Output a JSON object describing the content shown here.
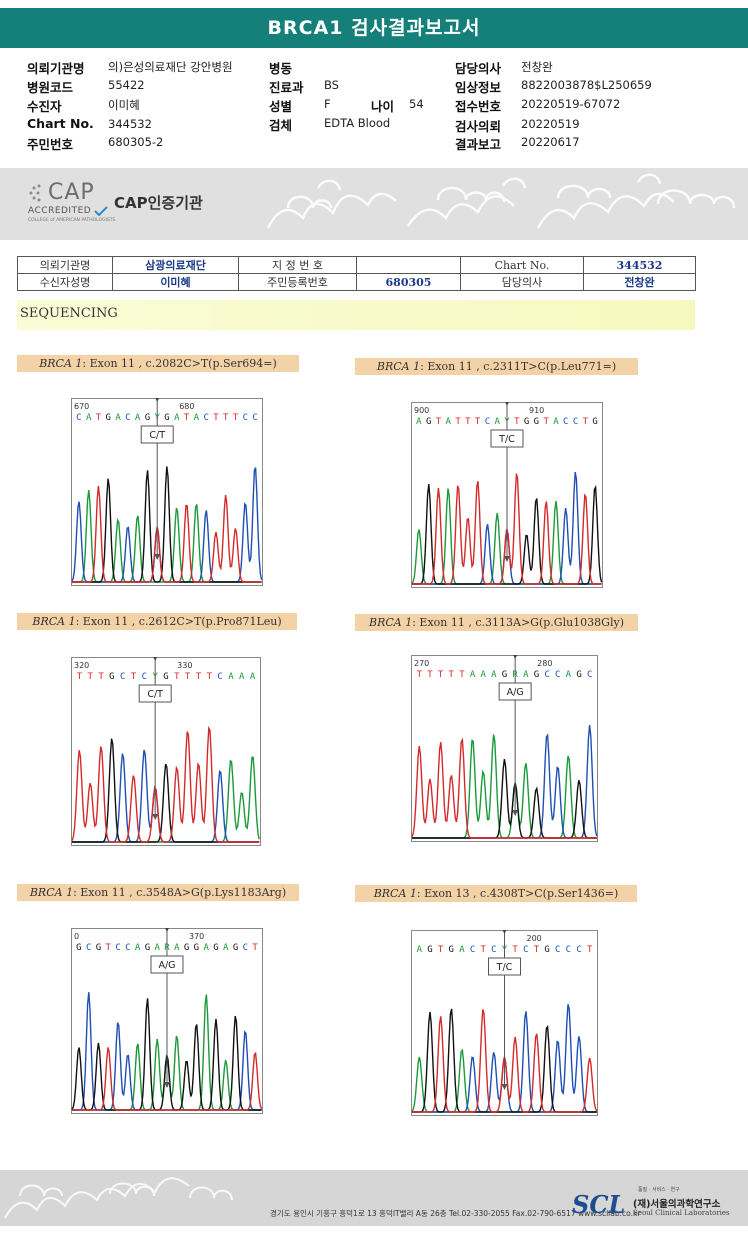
{
  "title": "BRCA1 검사결과보고서",
  "info": {
    "col1": [
      {
        "label": "의뢰기관명",
        "value": "의)은성의료재단 강안병원"
      },
      {
        "label": "병원코드",
        "value": "55422"
      },
      {
        "label": "수진자",
        "value": "이미혜"
      },
      {
        "label": "Chart No.",
        "value": "344532"
      },
      {
        "label": "주민번호",
        "value": "680305-2"
      }
    ],
    "col2": [
      {
        "label": "병동",
        "value": ""
      },
      {
        "label": "진료과",
        "value": "BS"
      },
      {
        "label": "성별",
        "value": "F"
      },
      {
        "label": "검체",
        "value": "EDTA Blood"
      }
    ],
    "age_label": "나이",
    "age_value": "54",
    "col3": [
      {
        "label": "담당의사",
        "value": "전창완"
      },
      {
        "label": "임상정보",
        "value": "8822003878$L250659"
      },
      {
        "label": "접수번호",
        "value": "20220519-67072"
      },
      {
        "label": "검사의뢰",
        "value": "20220519"
      },
      {
        "label": "결과보고",
        "value": "20220617"
      }
    ]
  },
  "cap": {
    "logo_word": "CAP",
    "logo_accredited": "ACCREDITED",
    "logo_sub": "COLLEGE of AMERICAN PATHOLOGISTS",
    "text": "CAP인증기관"
  },
  "patient_table": {
    "r1": [
      "의뢰기관명",
      "삼광의료재단",
      "지 정 번 호",
      "",
      "Chart No.",
      "344532"
    ],
    "r2": [
      "수신자성명",
      "이미혜",
      "주민등록번호",
      "680305",
      "담당의사",
      "전창완"
    ]
  },
  "section_title": "SEQUENCING",
  "variants": [
    {
      "gene": "BRCA 1",
      "desc": ": Exon 11 , c.2082C>T(p.Ser694=)",
      "pos_left": "670",
      "pos_right": "680",
      "bases": "CATGACAGYGATACTTTCC",
      "call": "C/T"
    },
    {
      "gene": "BRCA 1",
      "desc": ": Exon 11 , c.2311T>C(p.Leu771=)",
      "pos_left": "900",
      "pos_right": "910",
      "bases": "AGTATTTCAYTGGTACCTG",
      "call": "T/C"
    },
    {
      "gene": "BRCA 1",
      "desc": ": Exon 11 , c.2612C>T(p.Pro871Leu)",
      "pos_left": "320",
      "pos_right": "330",
      "bases": "TTTGCTCYGTTTTCAAA",
      "call": "C/T"
    },
    {
      "gene": "BRCA 1",
      "desc": ": Exon 11 , c.3113A>G(p.Glu1038Gly)",
      "pos_left": "270",
      "pos_right": "280",
      "bases": "TTTTTAAAGRAGCCAGC",
      "call": "A/G"
    },
    {
      "gene": "BRCA 1",
      "desc": ": Exon 11 , c.3548A>G(p.Lys1183Arg)",
      "pos_left": "0",
      "pos_right": "370",
      "bases": "GCGTCCAGARAGGAGAGCT",
      "call": "A/G"
    },
    {
      "gene": "BRCA 1",
      "desc": ": Exon 13 , c.4308T>C(p.Ser1436=)",
      "pos_left": "",
      "pos_right": "200",
      "bases": "AGTGACTCYTCTGCCCT",
      "call": "T/C"
    }
  ],
  "footer": {
    "address": "경기도 용인시 기흥구 흥덕1로 13 흥덕IT밸리 A동 26층  Tel.02-330-2055  Fax.02-790-6517  www.scllab.co.kr",
    "logo": "SCL",
    "tagline": "품질 · 서비스 · 연구",
    "corp_name": "(재)서울의과학연구소",
    "corp_name_en": "Seoul Clinical Laboratories"
  },
  "colors": {
    "A": "#1a9a3a",
    "C": "#1f4fb5",
    "G": "#111111",
    "T": "#d42a2a",
    "title_bg": "#157f7a"
  }
}
